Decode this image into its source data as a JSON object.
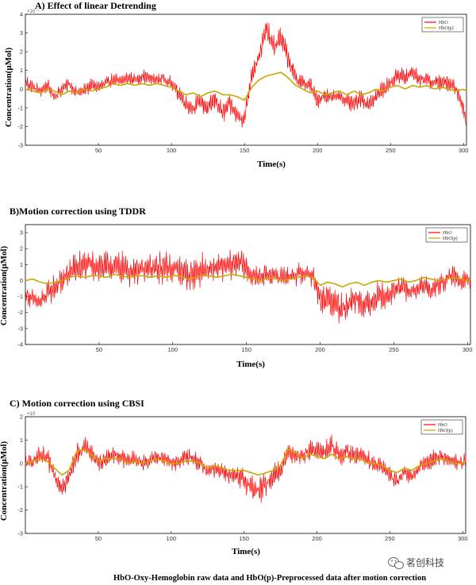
{
  "colors": {
    "raw": "#ff0000",
    "processed": "#c8a800",
    "axis": "#000000",
    "tick": "#444444"
  },
  "caption": "HbO-Oxy-Hemoglobin raw data  and HbO(p)-Preprocessed data after motion correction",
  "watermark": {
    "text": "茗创科技",
    "icon": "wechat-icon"
  },
  "chart_data": [
    {
      "type": "line",
      "title": "A) Effect of linear Detrending",
      "xlabel": "Time(s)",
      "ylabel": "Concentration(μMol)",
      "exponent": "×10⁻⁷",
      "xlim": [
        0,
        302
      ],
      "ylim": [
        -3,
        4
      ],
      "xticks": [
        50,
        100,
        150,
        200,
        250,
        300
      ],
      "yticks": [
        -3,
        -2,
        -1,
        0,
        1,
        2,
        3,
        4
      ],
      "legend": [
        "HbO",
        "HbO(p)"
      ],
      "legend_position": "top-right",
      "series": [
        {
          "name": "HbO",
          "color": "#ff0000",
          "x": [
            0,
            5,
            10,
            15,
            20,
            25,
            30,
            35,
            40,
            45,
            50,
            55,
            60,
            65,
            70,
            75,
            80,
            85,
            90,
            95,
            100,
            105,
            110,
            115,
            120,
            125,
            130,
            135,
            140,
            145,
            150,
            155,
            160,
            165,
            170,
            175,
            180,
            185,
            190,
            195,
            200,
            205,
            210,
            215,
            220,
            225,
            230,
            235,
            240,
            245,
            250,
            255,
            260,
            265,
            270,
            275,
            280,
            285,
            290,
            295,
            300,
            302
          ],
          "y": [
            0.4,
            0.1,
            -0.1,
            0.2,
            -0.4,
            0.0,
            0.3,
            -0.2,
            -0.1,
            0.2,
            0.1,
            0.3,
            0.5,
            0.4,
            0.6,
            0.5,
            0.7,
            0.6,
            0.5,
            0.6,
            0.3,
            -0.2,
            -0.8,
            -1.0,
            -0.6,
            -1.1,
            -0.5,
            -1.3,
            -0.8,
            -1.4,
            -1.6,
            0.8,
            1.8,
            3.2,
            2.2,
            2.8,
            1.6,
            0.6,
            0.3,
            0.2,
            -0.6,
            -0.3,
            -0.5,
            -0.3,
            -0.7,
            -0.8,
            -0.5,
            -0.8,
            -0.4,
            0.0,
            0.3,
            0.8,
            0.6,
            0.9,
            0.5,
            0.6,
            0.3,
            0.4,
            0.3,
            0.0,
            -1.0,
            -1.9
          ],
          "amp": [
            0.4,
            0.4,
            0.4,
            0.4,
            0.4,
            0.4,
            0.4,
            0.4,
            0.4,
            0.4,
            0.4,
            0.4,
            0.4,
            0.4,
            0.4,
            0.4,
            0.4,
            0.4,
            0.4,
            0.4,
            0.4,
            0.5,
            0.5,
            0.5,
            0.6,
            0.6,
            0.6,
            0.6,
            0.6,
            0.6,
            0.6,
            0.6,
            0.6,
            0.7,
            0.7,
            0.7,
            0.6,
            0.5,
            0.5,
            0.5,
            0.5,
            0.5,
            0.5,
            0.5,
            0.5,
            0.5,
            0.5,
            0.5,
            0.5,
            0.5,
            0.5,
            0.5,
            0.5,
            0.5,
            0.5,
            0.5,
            0.5,
            0.5,
            0.5,
            0.5,
            0.5,
            0.3
          ]
        },
        {
          "name": "HbO(p)",
          "color": "#c8a800",
          "x": [
            0,
            5,
            10,
            15,
            20,
            25,
            30,
            35,
            40,
            45,
            50,
            55,
            60,
            65,
            70,
            75,
            80,
            85,
            90,
            95,
            100,
            105,
            110,
            115,
            120,
            125,
            130,
            135,
            140,
            145,
            150,
            155,
            160,
            165,
            170,
            175,
            180,
            185,
            190,
            195,
            200,
            205,
            210,
            215,
            220,
            225,
            230,
            235,
            240,
            245,
            250,
            255,
            260,
            265,
            270,
            275,
            280,
            285,
            290,
            295,
            300,
            302
          ],
          "y": [
            0.0,
            -0.1,
            -0.2,
            0.0,
            -0.1,
            -0.3,
            -0.1,
            -0.2,
            0.0,
            -0.1,
            0.0,
            0.1,
            0.3,
            0.2,
            0.3,
            0.2,
            0.3,
            0.2,
            0.3,
            0.2,
            0.1,
            -0.1,
            -0.3,
            -0.2,
            -0.4,
            -0.2,
            -0.1,
            -0.3,
            -0.3,
            -0.4,
            -0.6,
            0.1,
            0.5,
            0.7,
            0.8,
            0.9,
            0.6,
            0.2,
            0.0,
            -0.2,
            -0.1,
            -0.3,
            -0.2,
            -0.1,
            -0.3,
            -0.1,
            -0.3,
            -0.2,
            0.0,
            -0.1,
            0.1,
            0.2,
            0.0,
            0.2,
            0.1,
            0.2,
            0.0,
            0.1,
            0.0,
            -0.1,
            0.0,
            -0.1
          ]
        }
      ]
    },
    {
      "type": "line",
      "title": "B)Motion correction using TDDR",
      "xlabel": "Time(s)",
      "ylabel": "Concentration(μMol)",
      "exponent": "",
      "xlim": [
        0,
        302
      ],
      "ylim": [
        -4,
        3.5
      ],
      "xticks": [
        50,
        100,
        150,
        200,
        250,
        300
      ],
      "yticks": [
        -4,
        -3,
        -2,
        -1,
        0,
        1,
        2,
        3
      ],
      "legend": [
        "HbO",
        "HbO(p)"
      ],
      "legend_position": "top-right",
      "series": [
        {
          "name": "HbO",
          "color": "#ff0000",
          "x": [
            0,
            5,
            10,
            15,
            20,
            25,
            30,
            35,
            40,
            45,
            50,
            55,
            60,
            65,
            70,
            75,
            80,
            85,
            90,
            95,
            100,
            105,
            110,
            115,
            120,
            125,
            130,
            135,
            140,
            145,
            150,
            155,
            160,
            165,
            170,
            175,
            180,
            185,
            190,
            195,
            200,
            205,
            210,
            215,
            220,
            225,
            230,
            235,
            240,
            245,
            250,
            255,
            260,
            265,
            270,
            275,
            280,
            285,
            290,
            295,
            300,
            302
          ],
          "y": [
            -0.8,
            -1.2,
            -1.4,
            -0.8,
            -0.4,
            0.0,
            0.5,
            0.8,
            0.9,
            1.0,
            0.9,
            0.8,
            0.9,
            0.8,
            0.6,
            0.7,
            0.6,
            0.8,
            0.7,
            0.9,
            0.8,
            0.6,
            0.3,
            0.5,
            0.7,
            0.6,
            0.9,
            0.8,
            1.0,
            1.3,
            0.7,
            0.2,
            0.3,
            0.4,
            0.2,
            0.3,
            0.3,
            0.4,
            0.5,
            0.3,
            -1.2,
            -1.2,
            -1.4,
            -1.8,
            -1.4,
            -1.0,
            -1.6,
            -1.3,
            -0.8,
            -1.1,
            -0.6,
            -0.4,
            -0.7,
            -0.6,
            -0.3,
            -0.6,
            -0.3,
            0.0,
            0.3,
            0.0,
            0.2,
            -0.2
          ],
          "amp": [
            0.6,
            0.7,
            0.7,
            0.8,
            0.9,
            1.0,
            1.1,
            1.1,
            1.1,
            1.1,
            1.1,
            1.1,
            1.1,
            1.1,
            1.1,
            1.1,
            1.1,
            1.1,
            1.1,
            1.1,
            1.1,
            1.1,
            1.1,
            1.1,
            1.1,
            1.1,
            1.0,
            1.0,
            1.0,
            1.0,
            0.8,
            0.7,
            0.7,
            0.7,
            0.7,
            0.7,
            0.7,
            0.8,
            0.8,
            0.8,
            0.9,
            1.0,
            1.1,
            1.1,
            1.1,
            1.0,
            1.0,
            1.0,
            0.9,
            0.9,
            0.8,
            0.8,
            0.8,
            0.8,
            0.8,
            0.8,
            0.7,
            0.7,
            0.7,
            0.7,
            0.7,
            0.6
          ]
        },
        {
          "name": "HbO(p)",
          "color": "#c8a800",
          "x": [
            0,
            5,
            10,
            15,
            20,
            25,
            30,
            35,
            40,
            45,
            50,
            55,
            60,
            65,
            70,
            75,
            80,
            85,
            90,
            95,
            100,
            105,
            110,
            115,
            120,
            125,
            130,
            135,
            140,
            145,
            150,
            155,
            160,
            165,
            170,
            175,
            180,
            185,
            190,
            195,
            200,
            205,
            210,
            215,
            220,
            225,
            230,
            235,
            240,
            245,
            250,
            255,
            260,
            265,
            270,
            275,
            280,
            285,
            290,
            295,
            300,
            302
          ],
          "y": [
            0.0,
            0.1,
            -0.1,
            -0.2,
            -0.1,
            0.0,
            0.2,
            0.3,
            0.2,
            0.3,
            0.3,
            0.2,
            0.4,
            0.3,
            0.2,
            0.3,
            0.3,
            0.2,
            0.3,
            0.2,
            0.3,
            0.3,
            0.1,
            0.2,
            0.3,
            0.3,
            0.2,
            0.3,
            0.4,
            0.3,
            0.2,
            0.1,
            0.0,
            0.2,
            0.1,
            0.0,
            0.1,
            0.2,
            0.3,
            0.2,
            -0.3,
            -0.1,
            -0.2,
            -0.4,
            -0.2,
            -0.1,
            -0.3,
            -0.1,
            0.0,
            -0.1,
            0.0,
            0.1,
            -0.1,
            0.0,
            0.2,
            0.1,
            0.0,
            0.1,
            0.2,
            0.1,
            0.0,
            0.1
          ]
        }
      ]
    },
    {
      "type": "line",
      "title": "C) Motion correction using CBSI",
      "xlabel": "Time(s)",
      "ylabel": "Concentration(μMol)",
      "exponent": "×10",
      "xlim": [
        0,
        302
      ],
      "ylim": [
        -3,
        2
      ],
      "xticks": [
        50,
        100,
        150,
        200,
        250,
        300
      ],
      "yticks": [
        -3,
        -2,
        -1,
        0,
        1,
        2
      ],
      "legend": [
        "HbO",
        "HbO(p)"
      ],
      "legend_position": "top-right",
      "series": [
        {
          "name": "HbO",
          "color": "#ff0000",
          "x": [
            0,
            5,
            10,
            15,
            20,
            25,
            30,
            35,
            40,
            45,
            50,
            55,
            60,
            65,
            70,
            75,
            80,
            85,
            90,
            95,
            100,
            105,
            110,
            115,
            120,
            125,
            130,
            135,
            140,
            145,
            150,
            155,
            160,
            165,
            170,
            175,
            180,
            185,
            190,
            195,
            200,
            205,
            210,
            215,
            220,
            225,
            230,
            235,
            240,
            245,
            250,
            255,
            260,
            265,
            270,
            275,
            280,
            285,
            290,
            295,
            300,
            302
          ],
          "y": [
            0.0,
            0.1,
            0.3,
            0.2,
            -0.5,
            -1.0,
            -0.6,
            0.4,
            0.7,
            0.5,
            0.0,
            0.2,
            0.4,
            0.3,
            0.1,
            0.2,
            0.0,
            0.1,
            0.3,
            0.2,
            0.1,
            0.0,
            0.3,
            0.2,
            0.0,
            -0.4,
            -0.2,
            -0.3,
            -0.5,
            -0.6,
            -0.7,
            -1.0,
            -1.2,
            -0.9,
            -0.5,
            -0.3,
            0.5,
            0.4,
            0.3,
            0.6,
            0.5,
            0.5,
            0.7,
            0.4,
            0.5,
            0.3,
            0.4,
            0.1,
            0.0,
            -0.2,
            -0.5,
            -0.8,
            -0.4,
            -0.6,
            -0.2,
            0.0,
            0.2,
            0.3,
            0.2,
            0.1,
            0.0,
            0.2
          ],
          "amp": [
            0.4,
            0.4,
            0.5,
            0.5,
            0.5,
            0.5,
            0.5,
            0.5,
            0.5,
            0.5,
            0.4,
            0.4,
            0.4,
            0.4,
            0.4,
            0.4,
            0.4,
            0.4,
            0.4,
            0.4,
            0.4,
            0.4,
            0.4,
            0.4,
            0.4,
            0.4,
            0.4,
            0.4,
            0.4,
            0.5,
            0.6,
            0.6,
            0.7,
            0.6,
            0.5,
            0.5,
            0.5,
            0.5,
            0.5,
            0.5,
            0.5,
            0.5,
            0.6,
            0.6,
            0.6,
            0.5,
            0.5,
            0.5,
            0.4,
            0.4,
            0.4,
            0.4,
            0.4,
            0.4,
            0.4,
            0.4,
            0.4,
            0.4,
            0.4,
            0.4,
            0.4,
            0.3
          ]
        },
        {
          "name": "HbO(p)",
          "color": "#c8a800",
          "x": [
            0,
            5,
            10,
            15,
            20,
            25,
            30,
            35,
            40,
            45,
            50,
            55,
            60,
            65,
            70,
            75,
            80,
            85,
            90,
            95,
            100,
            105,
            110,
            115,
            120,
            125,
            130,
            135,
            140,
            145,
            150,
            155,
            160,
            165,
            170,
            175,
            180,
            185,
            190,
            195,
            200,
            205,
            210,
            215,
            220,
            225,
            230,
            235,
            240,
            245,
            250,
            255,
            260,
            265,
            270,
            275,
            280,
            285,
            290,
            295,
            300,
            302
          ],
          "y": [
            0.0,
            0.1,
            0.2,
            0.1,
            -0.2,
            -0.5,
            -0.3,
            0.5,
            0.6,
            0.4,
            0.1,
            0.2,
            0.2,
            0.2,
            0.0,
            0.1,
            0.0,
            0.1,
            0.2,
            0.1,
            0.0,
            0.0,
            0.1,
            0.1,
            0.0,
            -0.2,
            -0.1,
            -0.2,
            -0.3,
            -0.3,
            -0.3,
            -0.4,
            -0.5,
            -0.4,
            -0.3,
            -0.1,
            0.6,
            0.5,
            0.2,
            0.4,
            0.3,
            0.2,
            0.4,
            0.2,
            0.3,
            0.2,
            0.2,
            0.0,
            0.0,
            -0.1,
            -0.3,
            -0.4,
            -0.2,
            -0.3,
            -0.1,
            0.0,
            0.1,
            0.2,
            0.1,
            0.0,
            0.0,
            0.1
          ]
        }
      ]
    }
  ]
}
